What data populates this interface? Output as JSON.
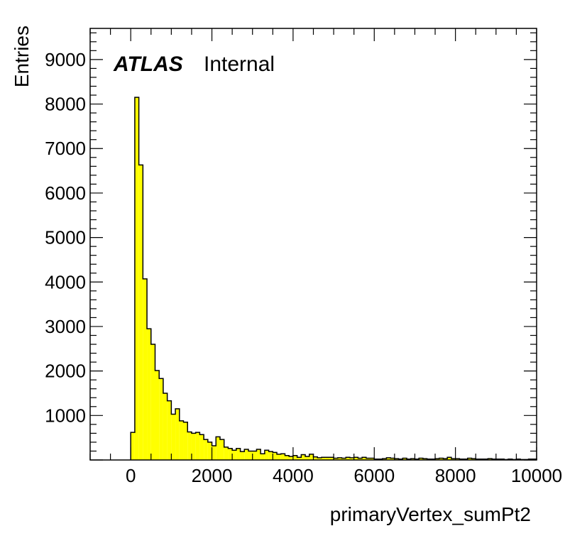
{
  "chart_data": {
    "type": "bar",
    "title": "",
    "xlabel": "primaryVertex_sumPt2",
    "ylabel": "Entries",
    "xlim": [
      -1000,
      10000
    ],
    "ylim": [
      0,
      9700
    ],
    "x_ticks": [
      0,
      2000,
      4000,
      6000,
      8000,
      10000
    ],
    "y_ticks": [
      1000,
      2000,
      3000,
      4000,
      5000,
      6000,
      7000,
      8000,
      9000
    ],
    "x_tick_labels": [
      "0",
      "2000",
      "4000",
      "6000",
      "8000",
      "10000"
    ],
    "y_tick_labels": [
      "1000",
      "2000",
      "3000",
      "4000",
      "5000",
      "6000",
      "7000",
      "8000",
      "9000"
    ],
    "bin_width": 100,
    "bin_start": 0,
    "values": [
      620,
      8150,
      6630,
      4070,
      2950,
      2600,
      2010,
      1830,
      1500,
      1330,
      1030,
      1150,
      880,
      850,
      630,
      600,
      620,
      570,
      460,
      400,
      320,
      520,
      460,
      290,
      260,
      220,
      260,
      190,
      240,
      200,
      200,
      240,
      140,
      220,
      190,
      170,
      130,
      140,
      100,
      80,
      100,
      60,
      120,
      80,
      130,
      70,
      50,
      60,
      60,
      60,
      40,
      50,
      40,
      60,
      50,
      60,
      40,
      60,
      40,
      40,
      20,
      20,
      30,
      50,
      40,
      30,
      20,
      40,
      20,
      30,
      20,
      40,
      30,
      20,
      20,
      30,
      40,
      30,
      60,
      30,
      30,
      20,
      20,
      40,
      30,
      20,
      20,
      20,
      30,
      20,
      20,
      20,
      10,
      20,
      10,
      20,
      10,
      10,
      20,
      20
    ],
    "fill_color": "#ffff00",
    "line_color": "#000000",
    "grid": false,
    "legend": "none"
  },
  "label": {
    "experiment": "ATLAS",
    "status": "Internal"
  }
}
